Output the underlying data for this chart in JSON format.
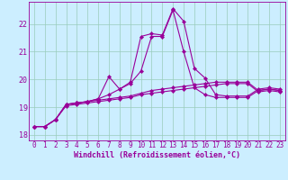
{
  "xlabel": "Windchill (Refroidissement éolien,°C)",
  "x": [
    0,
    1,
    2,
    3,
    4,
    5,
    6,
    7,
    8,
    9,
    10,
    11,
    12,
    13,
    14,
    15,
    16,
    17,
    18,
    19,
    20,
    21,
    22,
    23
  ],
  "line1": [
    18.3,
    18.3,
    18.55,
    19.05,
    19.1,
    19.15,
    19.2,
    19.25,
    19.3,
    19.35,
    19.45,
    19.5,
    19.55,
    19.6,
    19.65,
    19.7,
    19.75,
    19.8,
    19.85,
    19.85,
    19.85,
    19.55,
    19.6,
    19.55
  ],
  "line2": [
    18.3,
    18.3,
    18.55,
    19.1,
    19.15,
    19.2,
    19.25,
    19.3,
    19.35,
    19.4,
    19.5,
    19.6,
    19.65,
    19.7,
    19.75,
    19.8,
    19.85,
    19.9,
    19.9,
    19.9,
    19.9,
    19.6,
    19.65,
    19.6
  ],
  "line3": [
    18.3,
    18.3,
    18.55,
    19.1,
    19.15,
    19.2,
    19.3,
    19.45,
    19.65,
    19.85,
    20.3,
    21.55,
    21.55,
    22.5,
    21.0,
    19.7,
    19.45,
    19.35,
    19.35,
    19.35,
    19.35,
    19.6,
    19.65,
    19.6
  ],
  "line4": [
    18.3,
    18.3,
    18.55,
    19.1,
    19.15,
    19.2,
    19.3,
    20.1,
    19.65,
    19.9,
    21.55,
    21.65,
    21.6,
    22.55,
    22.1,
    20.4,
    20.05,
    19.45,
    19.4,
    19.4,
    19.4,
    19.65,
    19.7,
    19.65
  ],
  "ylim": [
    17.8,
    22.8
  ],
  "yticks": [
    18,
    19,
    20,
    21,
    22
  ],
  "bg_color": "#cceeff",
  "grid_color": "#99ccbb",
  "line_color": "#990099",
  "linewidth": 0.8,
  "markersize": 2.2,
  "tick_fontsize": 5.5,
  "xlabel_fontsize": 6.0
}
